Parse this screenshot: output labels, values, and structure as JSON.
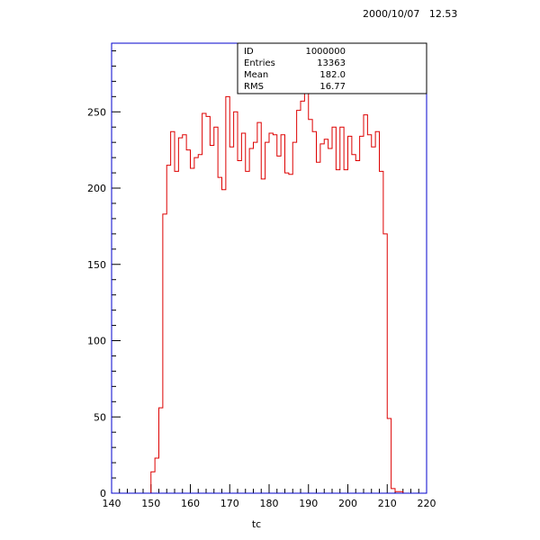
{
  "timestamp": "2000/10/07   12.53",
  "stats_box": {
    "rows": [
      {
        "label": "ID",
        "value": "1000000"
      },
      {
        "label": "Entries",
        "value": "13363"
      },
      {
        "label": "Mean",
        "value": "182.0"
      },
      {
        "label": "RMS",
        "value": "16.77"
      }
    ]
  },
  "colors": {
    "frame": "#0000cc",
    "histogram": "#dd0000",
    "axis": "#000000"
  },
  "chart_data": {
    "type": "histogram",
    "title": "",
    "xlabel": "tc",
    "ylabel": "",
    "xlim": [
      140,
      220
    ],
    "ylim": [
      0,
      295
    ],
    "x_ticks": [
      140,
      150,
      160,
      170,
      180,
      190,
      200,
      210,
      220
    ],
    "y_ticks": [
      0,
      50,
      100,
      150,
      200,
      250
    ],
    "bin_start": 140,
    "bin_width": 1,
    "values": [
      0,
      0,
      0,
      0,
      0,
      0,
      0,
      0,
      0,
      0,
      14,
      23,
      56,
      183,
      215,
      237,
      211,
      233,
      235,
      225,
      213,
      220,
      222,
      249,
      247,
      228,
      240,
      207,
      199,
      260,
      227,
      250,
      218,
      236,
      211,
      226,
      230,
      243,
      206,
      230,
      236,
      235,
      221,
      235,
      210,
      209,
      230,
      251,
      257,
      264,
      245,
      237,
      217,
      229,
      232,
      226,
      240,
      212,
      240,
      212,
      234,
      222,
      218,
      234,
      248,
      235,
      227,
      237,
      211,
      170,
      49,
      3,
      1,
      1,
      0,
      0,
      0,
      0,
      0,
      0
    ]
  }
}
